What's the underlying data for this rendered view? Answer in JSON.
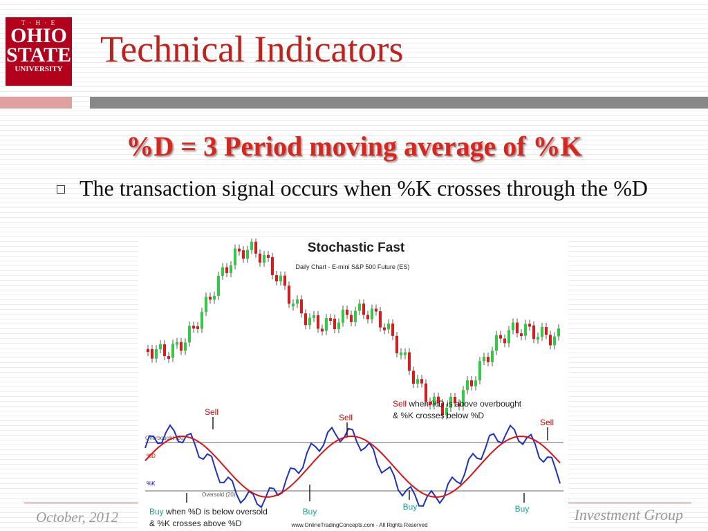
{
  "logo": {
    "line1": "T · H · E",
    "line2": "OHIO",
    "line3": "STATE",
    "line4": "UNIVERSITY"
  },
  "header": {
    "title": "Technical Indicators"
  },
  "subtitle": "%D = 3 Period moving average of %K",
  "bullets": [
    "The transaction signal occurs when %K crosses through the %D"
  ],
  "figure": {
    "title": "Stochastic Fast",
    "subtitle": "Daily Chart - E-mini S&P 500 Future (ES)",
    "overbought": "Overbought (80)",
    "oversold": "Oversold (20)",
    "d_label": "%D",
    "k_label": "%K",
    "sell_labels": [
      "Sell",
      "Sell",
      "Sell"
    ],
    "buy_labels": [
      "Buy",
      "Buy",
      "Buy"
    ],
    "sell_note": {
      "keyword": "Sell",
      "line1": "when %D is above overbought",
      "line2": "& %K crosses below %D"
    },
    "buy_note": {
      "keyword": "Buy",
      "line1": "when %D is below oversold",
      "line2": "& %K crosses above %D"
    },
    "credit": "www.OnlineTradingConcepts.com - All Rights Reserved"
  },
  "footer": {
    "date": "October, 2012",
    "org": "Investment Group"
  }
}
